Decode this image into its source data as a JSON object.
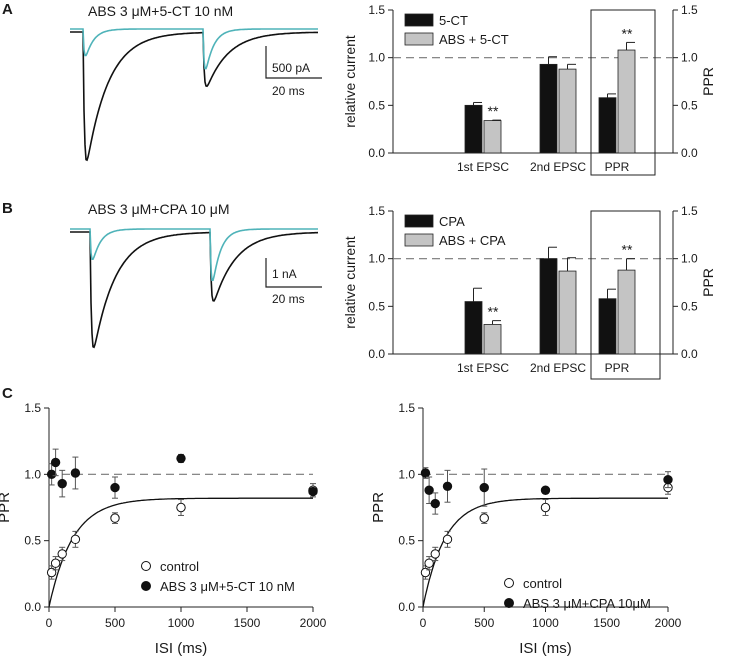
{
  "colors": {
    "trace_dark": "#111111",
    "trace_teal": "#4fb3b9",
    "bar_black": "#111111",
    "bar_gray": "#c4c4c4",
    "dashed": "#777777"
  },
  "panel_labels": [
    "A",
    "B",
    "C"
  ],
  "traces": [
    {
      "title": "ABS 3 μM+5-CT 10 nM",
      "scale_y": "500 pA",
      "scale_x": "20 ms",
      "control_amp1": 1.0,
      "drug_amp1": 0.26,
      "control_amp2": 0.45,
      "drug_amp2": 0.39
    },
    {
      "title": "ABS 3 μM+CPA 10 μM",
      "scale_y": "1 nA",
      "scale_x": "20 ms",
      "control_amp1": 1.0,
      "drug_amp1": 0.33,
      "control_amp2": 0.63,
      "drug_amp2": 0.56
    }
  ],
  "chart_data": [
    {
      "type": "bar",
      "panel": "A",
      "categories": [
        "1st EPSC",
        "2nd EPSC",
        "PPR"
      ],
      "series": [
        {
          "name": "5-CT",
          "values": [
            0.5,
            0.93,
            0.58
          ],
          "errors": [
            0.03,
            0.08,
            0.04
          ]
        },
        {
          "name": "ABS + 5-CT",
          "values": [
            0.34,
            0.88,
            1.08
          ],
          "errors": [
            0.005,
            0.05,
            0.08
          ]
        }
      ],
      "significance": [
        {
          "category": "1st EPSC",
          "label": "**"
        },
        {
          "category": "PPR",
          "label": "**"
        }
      ],
      "ylabel": "relative current",
      "ylabel_right": "PPR",
      "ylim": [
        0,
        1.5
      ],
      "yticks": [
        "0.0",
        "0.5",
        "1.0",
        "1.5"
      ],
      "dashed_y": 1.0,
      "legend": "top-left"
    },
    {
      "type": "bar",
      "panel": "B",
      "categories": [
        "1st EPSC",
        "2nd EPSC",
        "PPR"
      ],
      "series": [
        {
          "name": "CPA",
          "values": [
            0.55,
            1.0,
            0.58
          ],
          "errors": [
            0.14,
            0.12,
            0.1
          ]
        },
        {
          "name": "ABS + CPA",
          "values": [
            0.31,
            0.87,
            0.88
          ],
          "errors": [
            0.04,
            0.14,
            0.12
          ]
        }
      ],
      "significance": [
        {
          "category": "1st EPSC",
          "label": "**"
        },
        {
          "category": "PPR",
          "label": "**"
        }
      ],
      "ylabel": "relative current",
      "ylabel_right": "PPR",
      "ylim": [
        0,
        1.5
      ],
      "yticks": [
        "0.0",
        "0.5",
        "1.0",
        "1.5"
      ],
      "dashed_y": 1.0,
      "legend": "top-left"
    },
    {
      "type": "scatter",
      "panel": "C-left",
      "xlabel": "ISI  (ms)",
      "ylabel": "PPR",
      "xlim": [
        0,
        2000
      ],
      "ylim": [
        0,
        1.5
      ],
      "xticks": [
        "0",
        "500",
        "1000",
        "1500",
        "2000"
      ],
      "yticks": [
        "0.0",
        "0.5",
        "1.0",
        "1.5"
      ],
      "dashed_y": 1.0,
      "series": [
        {
          "name": "control",
          "marker": "open",
          "x": [
            20,
            50,
            100,
            200,
            500,
            1000,
            2000
          ],
          "y": [
            0.26,
            0.33,
            0.4,
            0.51,
            0.67,
            0.75,
            0.88
          ],
          "err": [
            0.05,
            0.05,
            0.05,
            0.06,
            0.04,
            0.06,
            0.05
          ]
        },
        {
          "name": "ABS 3 μM+5-CT 10 nM",
          "marker": "filled",
          "x": [
            20,
            50,
            100,
            200,
            500,
            1000,
            2000
          ],
          "y": [
            1.0,
            1.09,
            0.93,
            1.01,
            0.9,
            1.12,
            0.87
          ],
          "err": [
            0.08,
            0.1,
            0.1,
            0.12,
            0.08,
            0.03,
            0.02
          ]
        }
      ],
      "fit": {
        "ymax": 0.82,
        "tau_ms": 180,
        "y0": 0.0
      },
      "legend": "bottom-center"
    },
    {
      "type": "scatter",
      "panel": "C-right",
      "xlabel": "ISI  (ms)",
      "ylabel": "PPR",
      "xlim": [
        0,
        2000
      ],
      "ylim": [
        0,
        1.5
      ],
      "xticks": [
        "0",
        "500",
        "1000",
        "1500",
        "2000"
      ],
      "yticks": [
        "0.0",
        "0.5",
        "1.0",
        "1.5"
      ],
      "dashed_y": 1.0,
      "series": [
        {
          "name": "control",
          "marker": "open",
          "x": [
            20,
            50,
            100,
            200,
            500,
            1000,
            2000
          ],
          "y": [
            0.26,
            0.33,
            0.4,
            0.51,
            0.67,
            0.75,
            0.9
          ],
          "err": [
            0.05,
            0.05,
            0.05,
            0.06,
            0.04,
            0.06,
            0.05
          ]
        },
        {
          "name": "ABS 3 μM+CPA 10μM",
          "marker": "filled",
          "x": [
            20,
            50,
            100,
            200,
            500,
            1000,
            2000
          ],
          "y": [
            1.01,
            0.88,
            0.78,
            0.91,
            0.9,
            0.88,
            0.96
          ],
          "err": [
            0.04,
            0.1,
            0.08,
            0.12,
            0.14,
            0.02,
            0.06
          ]
        }
      ],
      "fit": {
        "ymax": 0.82,
        "tau_ms": 180,
        "y0": 0.0
      },
      "legend": "bottom-center"
    }
  ]
}
